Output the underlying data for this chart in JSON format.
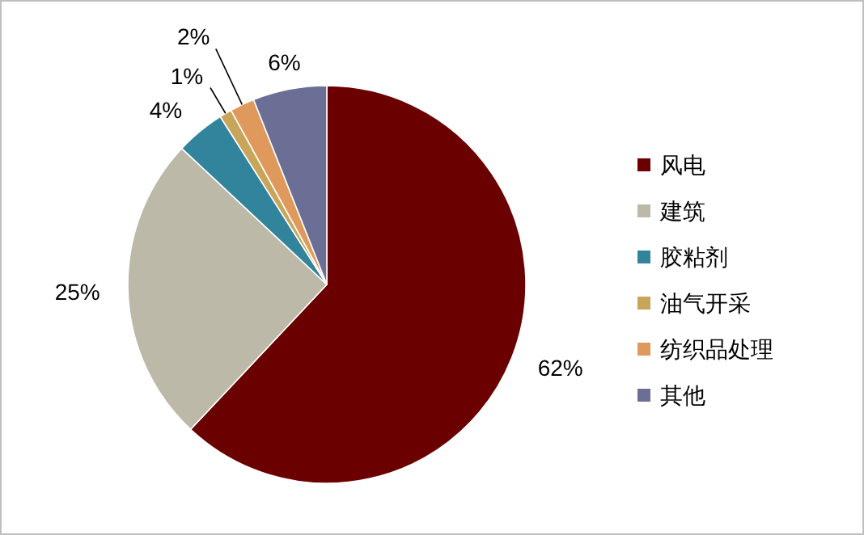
{
  "chart_data": {
    "type": "pie",
    "categories": [
      "风电",
      "建筑",
      "胶粘剂",
      "油气开采",
      "纺织品处理",
      "其他"
    ],
    "values": [
      62,
      25,
      4,
      1,
      2,
      6
    ],
    "colors": [
      "#6b0000",
      "#bcb9a8",
      "#31849b",
      "#c9a55a",
      "#e0995c",
      "#6b6f96"
    ],
    "value_labels": [
      "62%",
      "25%",
      "4%",
      "1%",
      "2%",
      "6%"
    ],
    "legend": "right"
  }
}
